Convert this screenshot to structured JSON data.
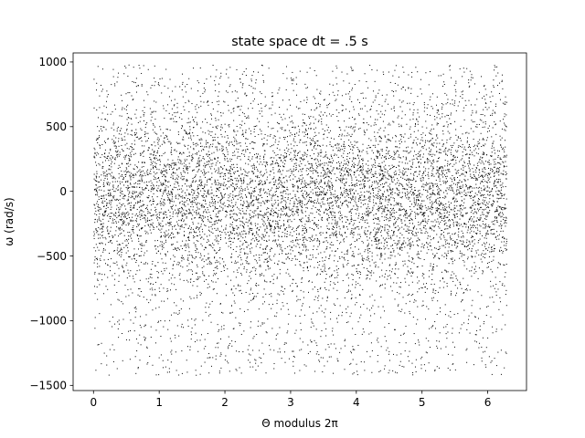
{
  "chart_data": {
    "type": "scatter",
    "title": "state space dt = .5 s",
    "xlabel": "Θ modulus 2π",
    "ylabel": "ω (rad/s)",
    "xlim": [
      -0.31,
      6.59
    ],
    "ylim": [
      -1540,
      1070
    ],
    "xticks": [
      0,
      1,
      2,
      3,
      4,
      5,
      6
    ],
    "yticks": [
      -1500,
      -1000,
      -500,
      0,
      500,
      1000
    ],
    "xtick_labels": [
      "0",
      "1",
      "2",
      "3",
      "4",
      "5",
      "6"
    ],
    "ytick_labels": [
      "−1500",
      "−1000",
      "−500",
      "0",
      "500",
      "1000"
    ],
    "grid": false,
    "marker": "pixel",
    "marker_color": "#000000",
    "series": [
      {
        "x_range": [
          0,
          6.2832
        ],
        "y_range": [
          -1420,
          980
        ],
        "approx_point_count": 9000,
        "density_note": "dense band between -700 and 600 rad/s, sparser toward -1400 and 950"
      }
    ]
  }
}
